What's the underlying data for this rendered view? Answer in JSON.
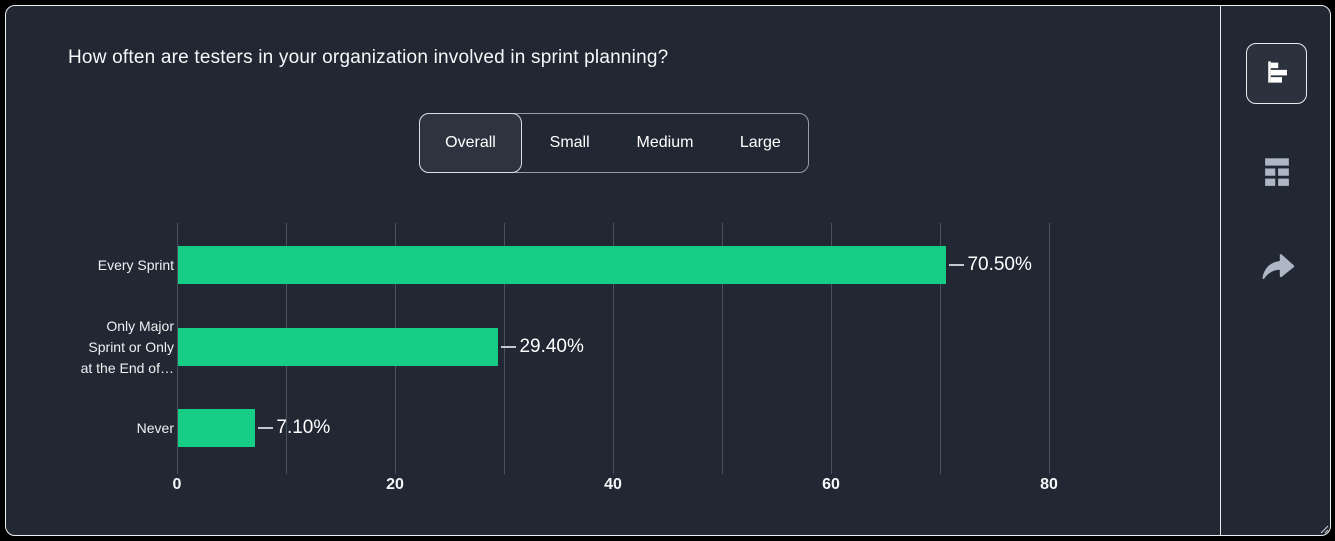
{
  "header": {
    "title": "How often are testers in your organization involved in sprint planning?"
  },
  "tabs": {
    "items": [
      {
        "label": "Overall",
        "selected": true
      },
      {
        "label": "Small",
        "selected": false
      },
      {
        "label": "Medium",
        "selected": false
      },
      {
        "label": "Large",
        "selected": false
      }
    ]
  },
  "toolbar": {
    "icons": [
      {
        "name": "bar-chart-view-icon",
        "selected": true
      },
      {
        "name": "table-view-icon",
        "selected": false
      },
      {
        "name": "share-icon",
        "selected": false
      }
    ]
  },
  "chart_data": {
    "type": "bar",
    "orientation": "horizontal",
    "title": "How often are testers in your organization involved in sprint planning?",
    "categories": [
      "Every Sprint",
      "Only Major Sprint or Only at the End of…",
      "Never"
    ],
    "category_display_lines": [
      [
        "Every Sprint"
      ],
      [
        "Only Major",
        "Sprint or Only",
        "at the End of…"
      ],
      [
        "Never"
      ]
    ],
    "values": [
      70.5,
      29.4,
      7.1
    ],
    "value_labels": [
      "70.50%",
      "29.40%",
      "7.10%"
    ],
    "xlim": [
      0,
      80
    ],
    "x_ticks_labeled": [
      0,
      20,
      40,
      60,
      80
    ],
    "x_gridline_step": 10,
    "xlabel": "",
    "ylabel": "",
    "grid": true,
    "legend": false,
    "bar_color": "#15cd85",
    "gridline_color": "#4c525d",
    "background_color": "#212733"
  }
}
